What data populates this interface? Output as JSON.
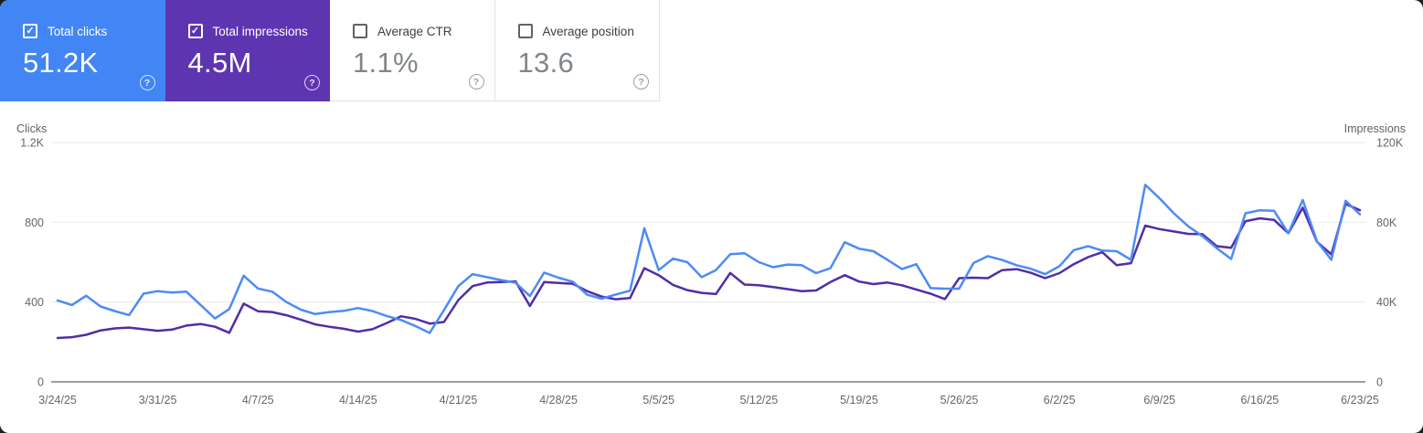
{
  "icons": {
    "help": "?",
    "check": "✓"
  },
  "cards": [
    {
      "label": "Total clicks",
      "value": "51.2K",
      "checked": true,
      "bg": "#4285f4"
    },
    {
      "label": "Total impressions",
      "value": "4.5M",
      "checked": true,
      "bg": "#5e35b1"
    },
    {
      "label": "Average CTR",
      "value": "1.1%",
      "checked": false,
      "bg": "#ffffff"
    },
    {
      "label": "Average position",
      "value": "13.6",
      "checked": false,
      "bg": "#ffffff"
    }
  ],
  "chart_data": {
    "type": "line",
    "x_tick_labels": [
      "3/24/25",
      "3/31/25",
      "4/7/25",
      "4/14/25",
      "4/21/25",
      "4/28/25",
      "5/5/25",
      "5/12/25",
      "5/19/25",
      "5/26/25",
      "6/2/25",
      "6/9/25",
      "6/16/25",
      "6/23/25"
    ],
    "x_tick_day_step": 7,
    "left_axis": {
      "title": "Clicks",
      "ticks": [
        "0",
        "400",
        "800",
        "1.2K"
      ],
      "tick_values": [
        0,
        400,
        800,
        1200
      ],
      "range": [
        0,
        1200
      ]
    },
    "right_axis": {
      "title": "Impressions",
      "ticks": [
        "0",
        "40K",
        "80K",
        "120K"
      ],
      "tick_values": [
        0,
        40000,
        80000,
        120000
      ],
      "range": [
        0,
        120000
      ]
    },
    "grid": true,
    "legend_position": "none",
    "series": [
      {
        "name": "Total clicks",
        "axis": "left",
        "color": "#4d8bf5",
        "values": [
          408,
          385,
          432,
          378,
          355,
          335,
          442,
          455,
          448,
          452,
          385,
          318,
          365,
          532,
          468,
          452,
          400,
          362,
          340,
          350,
          356,
          370,
          355,
          330,
          310,
          280,
          245,
          360,
          480,
          540,
          525,
          510,
          497,
          430,
          548,
          522,
          502,
          437,
          417,
          438,
          457,
          770,
          560,
          618,
          600,
          525,
          560,
          640,
          645,
          600,
          575,
          588,
          585,
          545,
          570,
          700,
          668,
          655,
          611,
          565,
          590,
          470,
          467,
          467,
          596,
          630,
          611,
          585,
          567,
          540,
          580,
          660,
          680,
          658,
          655,
          612,
          988,
          920,
          845,
          780,
          730,
          670,
          616,
          845,
          860,
          858,
          745,
          912,
          705,
          612,
          908,
          840
        ]
      },
      {
        "name": "Total impressions",
        "axis": "right",
        "color": "#512da8",
        "values": [
          22000,
          22400,
          23600,
          25800,
          26800,
          27200,
          26400,
          25600,
          26200,
          28200,
          29000,
          27600,
          24600,
          39200,
          35400,
          35000,
          33400,
          31200,
          28800,
          27600,
          26600,
          25200,
          26400,
          29500,
          32900,
          31600,
          29200,
          30000,
          41000,
          48000,
          49800,
          50000,
          50400,
          38000,
          50000,
          49600,
          49200,
          45500,
          42800,
          41400,
          42000,
          57000,
          53500,
          48600,
          46000,
          44600,
          44000,
          54600,
          48800,
          48400,
          47500,
          46500,
          45500,
          45800,
          50000,
          53500,
          50300,
          49000,
          49800,
          48400,
          46300,
          44200,
          41500,
          52000,
          52200,
          52000,
          56000,
          56500,
          54700,
          52000,
          54500,
          59000,
          62500,
          65000,
          58500,
          59500,
          78300,
          76600,
          75400,
          74200,
          74000,
          68000,
          67200,
          80500,
          82000,
          81200,
          74500,
          87300,
          70200,
          63900,
          89200,
          86000
        ]
      }
    ],
    "colors": {
      "gridline": "#e9eaec",
      "baseline": "#9aa0a6",
      "tick_text": "#63676b"
    },
    "start_date": "3/24/25",
    "end_date": "6/23/25"
  }
}
